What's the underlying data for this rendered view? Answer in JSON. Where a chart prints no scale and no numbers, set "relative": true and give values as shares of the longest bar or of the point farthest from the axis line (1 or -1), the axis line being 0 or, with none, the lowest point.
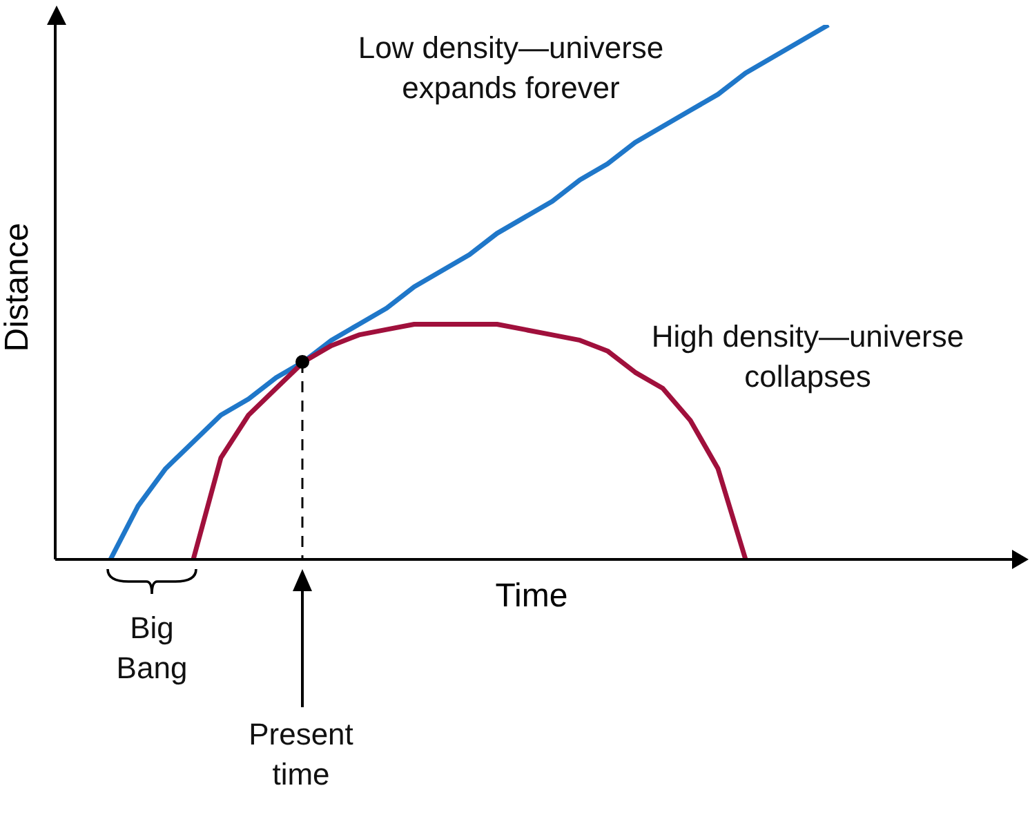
{
  "chart_data": {
    "type": "line",
    "relative": true,
    "xlabel": "Time",
    "ylabel": "Distance",
    "categories": [
      null,
      null,
      null,
      null,
      null,
      null,
      null,
      null,
      null,
      null,
      null,
      null,
      null,
      null,
      null,
      null,
      null,
      null,
      null,
      null,
      null,
      null,
      null,
      null,
      null,
      null,
      null,
      null,
      null,
      null,
      null,
      null,
      null,
      null,
      null,
      null
    ],
    "series": [
      {
        "color": "#1f77c9",
        "values": [
          null,
          null,
          0,
          0.1,
          0.17,
          0.22,
          0.27,
          0.3,
          0.34,
          0.37,
          0.41,
          0.44,
          0.47,
          0.51,
          0.54,
          0.57,
          0.61,
          0.64,
          0.67,
          0.71,
          0.74,
          0.78,
          0.81,
          0.84,
          0.87,
          0.91,
          0.94,
          0.97,
          1.0,
          null,
          null,
          null,
          null,
          null,
          null,
          null
        ]
      },
      {
        "color": "#a0103c",
        "values": [
          null,
          null,
          null,
          null,
          null,
          0,
          0.19,
          0.27,
          0.32,
          0.37,
          0.4,
          0.42,
          0.43,
          0.44,
          0.44,
          0.44,
          0.44,
          0.43,
          0.42,
          0.41,
          0.39,
          0.35,
          0.32,
          0.26,
          0.17,
          0,
          null,
          null,
          null,
          null,
          null,
          null,
          null,
          null,
          null,
          null
        ]
      }
    ],
    "annotations": [
      "Low density—universe expands forever",
      "High density—universe collapses",
      "Big Bang",
      "Present time"
    ]
  }
}
